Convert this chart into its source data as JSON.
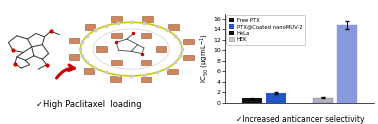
{
  "ylabel": "IC$_{50}$ (μgmL$^{-1}$)",
  "xlabel_bottom": "✓Increased anticancer selectivity",
  "left_caption": "✓High Paclitaxel  loading",
  "legend_labels": [
    "Free PTX",
    "PTX@Coated nanoMUV-2",
    "HeLa",
    "HEK"
  ],
  "legend_colors": [
    "#111111",
    "#2255cc",
    "#111111",
    "#c8c8e0"
  ],
  "groups": [
    "HeLa",
    "HEK"
  ],
  "bar_data": [
    {
      "label": "Free PTX",
      "hela_color": "#111111",
      "hek_color": "#b0b0c8",
      "hela_val": 0.85,
      "hek_val": 1.0,
      "hela_err": 0.06,
      "hek_err": 0.1
    },
    {
      "label": "PTX@Coated nanoMUV-2",
      "hela_color": "#2255cc",
      "hek_color": "#8899dd",
      "hela_val": 1.9,
      "hek_val": 14.8,
      "hela_err": 0.12,
      "hek_err": 0.75
    }
  ],
  "ylim": [
    0,
    17
  ],
  "yticks": [
    0,
    2,
    4,
    6,
    8,
    10,
    12,
    14,
    16
  ],
  "bar_width": 0.28,
  "background_color": "#ffffff"
}
